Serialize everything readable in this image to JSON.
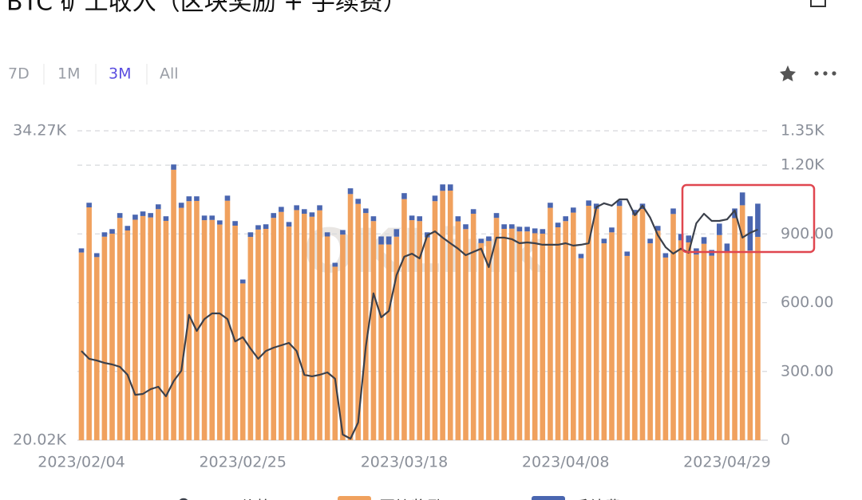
{
  "header": {
    "title": "BTC 矿工收入（区块奖励 + 手续费）",
    "ranges": [
      "7D",
      "1M",
      "3M",
      "All"
    ]
  },
  "chart_data": {
    "type": "bar-line",
    "watermark": "OKLink",
    "categories": [
      "2023/02/04",
      null,
      null,
      null,
      null,
      null,
      null,
      null,
      null,
      null,
      null,
      null,
      null,
      null,
      null,
      null,
      null,
      null,
      null,
      null,
      null,
      "2023/02/25",
      null,
      null,
      null,
      null,
      null,
      null,
      null,
      null,
      null,
      null,
      null,
      null,
      null,
      null,
      null,
      null,
      null,
      null,
      null,
      null,
      "2023/03/18",
      null,
      null,
      null,
      null,
      null,
      null,
      null,
      null,
      null,
      null,
      null,
      null,
      null,
      null,
      null,
      null,
      null,
      null,
      null,
      null,
      "2023/04/08",
      null,
      null,
      null,
      null,
      null,
      null,
      null,
      null,
      null,
      null,
      null,
      null,
      null,
      null,
      null,
      null,
      null,
      null,
      null,
      null,
      "2023/04/29",
      null,
      null,
      null,
      null
    ],
    "ylim": [
      20020,
      34270
    ],
    "yticks": [
      {
        "value": 20020,
        "label": "20.02K"
      },
      {
        "value": 34270,
        "label": "34.27K"
      }
    ],
    "y2lim": [
      0,
      1350
    ],
    "y2ticks": [
      0,
      {
        "value": 300,
        "label": "300.00"
      },
      {
        "value": 600,
        "label": "600.00"
      },
      {
        "value": 900,
        "label": "900.00"
      },
      {
        "value": 1200,
        "label": "1.20K"
      },
      {
        "value": 1350,
        "label": "1.35K"
      }
    ],
    "grid": true,
    "series": [
      {
        "name": "BTC价格($)",
        "kind": "line",
        "axis": "y",
        "color": "#3b404b",
        "values": [
          24130,
          23770,
          23690,
          23580,
          23510,
          23400,
          23030,
          22110,
          22150,
          22370,
          22480,
          22040,
          22740,
          23220,
          25790,
          25050,
          25600,
          25860,
          25860,
          25600,
          24570,
          24760,
          24240,
          23770,
          24130,
          24280,
          24390,
          24500,
          24130,
          23030,
          22960,
          23030,
          23140,
          22850,
          20280,
          20090,
          20830,
          24320,
          26780,
          25680,
          25970,
          27620,
          28470,
          28610,
          28390,
          29460,
          29640,
          29350,
          29090,
          28840,
          28540,
          28690,
          28840,
          27990,
          29350,
          29350,
          29280,
          29090,
          29130,
          29090,
          29020,
          29020,
          29020,
          29090,
          28980,
          29020,
          29090,
          30750,
          30930,
          30820,
          31110,
          31110,
          30380,
          30820,
          30270,
          29460,
          28910,
          28610,
          28840,
          28650,
          30010,
          30450,
          30120,
          30120,
          30190,
          30600,
          29350,
          29570,
          29720
        ]
      },
      {
        "name": "区块奖励 (BTC)",
        "kind": "bar",
        "axis": "y2",
        "color": "#f0a15e",
        "values": [
          819,
          1016,
          799,
          888,
          901,
          970,
          915,
          962,
          978,
          972,
          1008,
          957,
          1180,
          1014,
          1043,
          1044,
          960,
          961,
          941,
          1045,
          936,
          684,
          887,
          919,
          922,
          970,
          996,
          932,
          1004,
          988,
          975,
          1003,
          889,
          757,
          897,
          1074,
          1031,
          991,
          956,
          854,
          854,
          888,
          1052,
          960,
          956,
          885,
          1043,
          1088,
          1089,
          955,
          921,
          988,
          860,
          869,
          970,
          922,
          923,
          911,
          911,
          903,
          901,
          1014,
          929,
          956,
          993,
          794,
          1023,
          1010,
          859,
          907,
          1022,
          804,
          983,
          1009,
          859,
          914,
          797,
          987,
          872,
          863,
          810,
          857,
          805,
          895,
          818,
          969,
          1025,
          827,
          887
        ]
      },
      {
        "name": "手续费(BTC)",
        "kind": "bar",
        "axis": "y2",
        "color": "#4a66b0",
        "values": [
          18,
          20,
          17,
          19,
          20,
          21,
          20,
          22,
          20,
          19,
          21,
          20,
          23,
          22,
          21,
          20,
          20,
          19,
          18,
          22,
          20,
          17,
          20,
          19,
          20,
          21,
          22,
          20,
          21,
          20,
          19,
          22,
          18,
          17,
          20,
          25,
          22,
          20,
          21,
          35,
          35,
          33,
          26,
          20,
          21,
          22,
          24,
          28,
          27,
          22,
          21,
          20,
          19,
          20,
          21,
          20,
          19,
          20,
          20,
          21,
          20,
          22,
          20,
          21,
          22,
          19,
          23,
          22,
          20,
          21,
          24,
          19,
          22,
          23,
          20,
          21,
          19,
          24,
          28,
          30,
          27,
          29,
          25,
          50,
          40,
          42,
          56,
          150,
          145
        ]
      }
    ]
  }
}
